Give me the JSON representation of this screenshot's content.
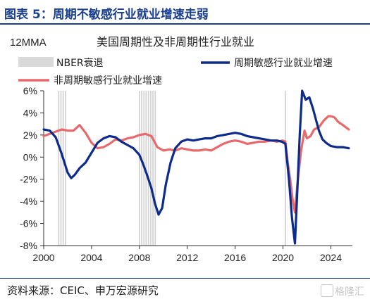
{
  "header": {
    "title": "图表 5：周期不敏感行业就业增速走弱"
  },
  "source": "资料来源：CEIC、申万宏源研究",
  "watermark": "格隆汇",
  "chart_data": {
    "type": "line",
    "title": "美国周期性及非周期性行业就业",
    "subtitle": "12MMA",
    "xlabel": "",
    "ylabel": "",
    "xlim": [
      2000,
      2025.8
    ],
    "ylim": [
      -8,
      6
    ],
    "yticks": [
      "6%",
      "4%",
      "2%",
      "0%",
      "-2%",
      "-4%",
      "-6%",
      "-8%"
    ],
    "ytick_values": [
      6,
      4,
      2,
      0,
      -2,
      -4,
      -6,
      -8
    ],
    "xticks": [
      "2000",
      "2004",
      "2008",
      "2012",
      "2016",
      "2020",
      "2024"
    ],
    "xtick_values": [
      2000,
      2004,
      2008,
      2012,
      2016,
      2020,
      2024
    ],
    "grid": false,
    "recessions": [
      {
        "name": "NBER衰退",
        "start": 2001.2,
        "end": 2001.9
      },
      {
        "name": "NBER衰退",
        "start": 2007.95,
        "end": 2009.45
      },
      {
        "name": "NBER衰退",
        "start": 2020.15,
        "end": 2020.35
      }
    ],
    "legend": [
      {
        "label": "NBER衰退",
        "kind": "band",
        "color": "#d9d9d9"
      },
      {
        "label": "周期敏感行业就业增速",
        "kind": "line",
        "color": "#0d2b8c"
      },
      {
        "label": "非周期敏感行业就业增速",
        "kind": "line",
        "color": "#e8696b"
      }
    ],
    "series": [
      {
        "name": "周期敏感行业就业增速",
        "color": "#0d2b8c",
        "x": [
          2000.0,
          2000.5,
          2001.0,
          2001.5,
          2002.0,
          2002.3,
          2002.6,
          2003.0,
          2003.5,
          2004.0,
          2004.5,
          2005.0,
          2005.5,
          2006.0,
          2006.5,
          2007.0,
          2007.5,
          2008.0,
          2008.3,
          2008.6,
          2009.0,
          2009.3,
          2009.6,
          2009.9,
          2010.2,
          2010.6,
          2011.0,
          2011.5,
          2012.0,
          2012.5,
          2013.0,
          2013.5,
          2014.0,
          2014.5,
          2015.0,
          2015.5,
          2016.0,
          2016.5,
          2017.0,
          2017.5,
          2018.0,
          2018.5,
          2019.0,
          2019.5,
          2019.9,
          2020.2,
          2020.5,
          2020.75,
          2021.0,
          2021.2,
          2021.4,
          2021.6,
          2021.9,
          2022.2,
          2022.5,
          2022.8,
          2023.0,
          2023.3,
          2023.6,
          2024.0,
          2024.5,
          2025.0,
          2025.5
        ],
        "values": [
          2.5,
          2.4,
          1.8,
          0.3,
          -1.4,
          -1.9,
          -1.6,
          -1.0,
          -0.5,
          0.4,
          1.3,
          1.7,
          1.9,
          1.8,
          1.4,
          1.1,
          0.8,
          0.2,
          -0.6,
          -1.5,
          -2.8,
          -4.2,
          -5.2,
          -4.6,
          -2.5,
          -0.5,
          0.8,
          1.4,
          1.6,
          1.5,
          1.6,
          1.7,
          1.7,
          1.9,
          2.0,
          2.1,
          2.2,
          2.1,
          1.9,
          1.8,
          1.7,
          1.6,
          1.5,
          1.5,
          1.4,
          1.2,
          -2.0,
          -5.5,
          -7.8,
          -3.0,
          2.0,
          6.0,
          5.2,
          5.4,
          4.4,
          3.2,
          2.4,
          1.6,
          1.3,
          1.0,
          0.9,
          0.9,
          0.8
        ]
      },
      {
        "name": "非周期敏感行业就业增速",
        "color": "#e8696b",
        "x": [
          2000.0,
          2000.5,
          2001.0,
          2001.5,
          2002.0,
          2002.5,
          2003.0,
          2003.5,
          2004.0,
          2004.5,
          2005.0,
          2005.5,
          2006.0,
          2006.5,
          2007.0,
          2007.5,
          2008.0,
          2008.5,
          2009.0,
          2009.5,
          2010.0,
          2010.5,
          2011.0,
          2011.5,
          2012.0,
          2012.5,
          2013.0,
          2013.5,
          2014.0,
          2014.5,
          2015.0,
          2015.5,
          2016.0,
          2016.5,
          2017.0,
          2017.5,
          2018.0,
          2018.5,
          2019.0,
          2019.5,
          2020.0,
          2020.2,
          2020.4,
          2020.6,
          2020.8,
          2021.0,
          2021.2,
          2021.5,
          2021.8,
          2022.0,
          2022.3,
          2022.6,
          2023.0,
          2023.4,
          2023.8,
          2024.0,
          2024.3,
          2024.6,
          2025.0,
          2025.5
        ],
        "values": [
          1.9,
          2.1,
          2.3,
          2.5,
          2.4,
          2.4,
          2.9,
          2.2,
          1.3,
          0.8,
          0.9,
          1.2,
          1.6,
          1.5,
          1.7,
          1.8,
          2.0,
          2.1,
          1.9,
          0.9,
          0.6,
          0.7,
          0.6,
          0.8,
          0.7,
          0.6,
          0.6,
          0.7,
          0.6,
          0.9,
          1.2,
          1.4,
          1.5,
          1.4,
          1.2,
          1.3,
          1.4,
          1.4,
          1.5,
          1.4,
          1.5,
          1.4,
          -0.5,
          -2.0,
          -3.8,
          -5.0,
          -2.5,
          0.5,
          2.4,
          1.7,
          1.9,
          2.5,
          2.7,
          3.3,
          3.7,
          3.7,
          3.6,
          3.2,
          2.9,
          2.5
        ]
      }
    ]
  }
}
